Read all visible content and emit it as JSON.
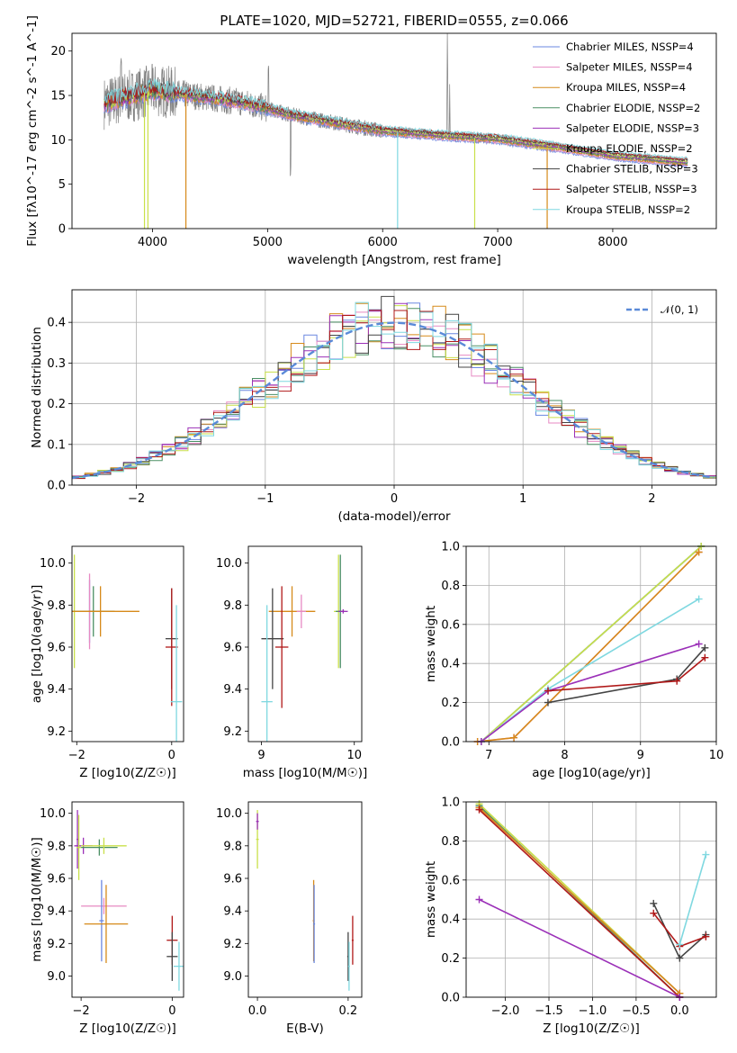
{
  "chart_data": [
    {
      "type": "line",
      "title": "PLATE=1020, MJD=52721, FIBERID=0555, z=0.066",
      "xlabel": "wavelength [Angstrom, rest frame]",
      "ylabel": "Flux [fλ10^-17 erg cm^-2 s^-1 A^-1]",
      "xlim": [
        3300,
        8900
      ],
      "ylim": [
        0,
        22
      ],
      "xticks": [
        "4000",
        "5000",
        "6000",
        "7000",
        "8000"
      ],
      "yticks": [
        "0",
        "5",
        "10",
        "15",
        "20"
      ],
      "legend_position": "top-right",
      "series": [
        {
          "name": "Chabrier MILES, NSSP=4",
          "color": "#6a87e0"
        },
        {
          "name": "Salpeter MILES, NSSP=4",
          "color": "#e78ac3"
        },
        {
          "name": "Kroupa MILES, NSSP=4",
          "color": "#d68a1a"
        },
        {
          "name": "Chabrier ELODIE, NSSP=2",
          "color": "#4a8f64"
        },
        {
          "name": "Salpeter ELODIE, NSSP=3",
          "color": "#9b30b8"
        },
        {
          "name": "Kroupa ELODIE, NSSP=2",
          "color": "#c9e04a"
        },
        {
          "name": "Chabrier STELIB, NSSP=3",
          "color": "#444444"
        },
        {
          "name": "Salpeter STELIB, NSSP=3",
          "color": "#b01818"
        },
        {
          "name": "Kroupa STELIB, NSSP=2",
          "color": "#7fd8e0"
        }
      ],
      "continuum": {
        "x": [
          3600,
          4000,
          4800,
          5200,
          6000,
          6500,
          7000,
          7500,
          8000,
          8600
        ],
        "y": [
          14.2,
          15.6,
          14.2,
          12.8,
          11.0,
          10.5,
          10.1,
          9.2,
          8.2,
          7.5
        ]
      }
    },
    {
      "type": "line",
      "xlabel": "(data-model)/error",
      "ylabel": "Normed distribution",
      "xlim": [
        -2.5,
        2.5
      ],
      "ylim": [
        0,
        0.48
      ],
      "xticks": [
        "−2",
        "−1",
        "0",
        "1",
        "2"
      ],
      "yticks": [
        "0.0",
        "0.1",
        "0.2",
        "0.3",
        "0.4"
      ],
      "legend_position": "top-right",
      "series": [
        {
          "name": "𝒩(0, 1)",
          "color": "#5a8ad8",
          "style": "dashed",
          "function": "normal_pdf"
        }
      ]
    },
    {
      "type": "scatter",
      "xlabel": "Z [log10(Z/Z☉)]",
      "ylabel": "age  [log10(age/yr)]",
      "xlim": [
        -2.1,
        0.25
      ],
      "ylim": [
        9.15,
        10.08
      ],
      "xticks": [
        "−2",
        "0"
      ],
      "yticks": [
        "9.2",
        "9.4",
        "9.6",
        "9.8",
        "10.0"
      ],
      "points": [
        {
          "x": -2.05,
          "y": 9.77,
          "xerr": 0.05,
          "yerr": 0.27,
          "color": "#c9e04a"
        },
        {
          "x": -1.73,
          "y": 9.77,
          "xerr": [
            0.02,
            0.28
          ],
          "yerr": 0.15,
          "color": "#6a87e0"
        },
        {
          "x": -1.73,
          "y": 9.77,
          "xerr": 0.15,
          "yerr": 0.18,
          "color": "#e78ac3"
        },
        {
          "x": -1.65,
          "y": 9.77,
          "xerr": 0.45,
          "yerr": 0.12,
          "color": "#4a8f64"
        },
        {
          "x": -1.5,
          "y": 9.77,
          "xerr": 0.82,
          "yerr": 0.12,
          "color": "#d68a1a"
        },
        {
          "x": 0.0,
          "y": 9.64,
          "xerr": 0.13,
          "yerr": 0.24,
          "color": "#444444"
        },
        {
          "x": 0.0,
          "y": 9.6,
          "xerr": 0.13,
          "yerr": 0.28,
          "color": "#b01818"
        },
        {
          "x": 0.1,
          "y": 9.34,
          "xerr": 0.12,
          "yerr": 0.46,
          "color": "#7fd8e0"
        }
      ]
    },
    {
      "type": "scatter",
      "xlabel": "mass [log10(M/M☉)]",
      "ylabel": "",
      "xlim": [
        8.86,
        10.08
      ],
      "ylim": [
        9.15,
        10.08
      ],
      "xticks": [
        "9",
        "10"
      ],
      "yticks": [
        "9.2",
        "9.4",
        "9.6",
        "9.8",
        "10.0"
      ],
      "points": [
        {
          "x": 9.83,
          "y": 9.77,
          "xerr": 0.05,
          "yerr": 0.27,
          "color": "#c9e04a"
        },
        {
          "x": 9.85,
          "y": 9.77,
          "xerr": 0.05,
          "yerr": 0.27,
          "color": "#4a8f64"
        },
        {
          "x": 9.88,
          "y": 9.77,
          "xerr": 0.05,
          "yerr": 0.01,
          "color": "#9b30b8"
        },
        {
          "x": 9.33,
          "y": 9.77,
          "xerr": 0.25,
          "yerr": 0.12,
          "color": "#d68a1a"
        },
        {
          "x": 9.43,
          "y": 9.77,
          "xerr": 0.05,
          "yerr": 0.08,
          "color": "#e78ac3"
        },
        {
          "x": 9.12,
          "y": 9.64,
          "xerr": 0.12,
          "yerr": 0.24,
          "color": "#444444"
        },
        {
          "x": 9.22,
          "y": 9.6,
          "xerr": 0.07,
          "yerr": 0.29,
          "color": "#b01818"
        },
        {
          "x": 9.06,
          "y": 9.34,
          "xerr": 0.06,
          "yerr": 0.46,
          "color": "#7fd8e0"
        }
      ]
    },
    {
      "type": "line",
      "xlabel": "age  [log10(age/yr)]",
      "ylabel": "mass weight",
      "xlim": [
        6.7,
        10
      ],
      "ylim": [
        0,
        1
      ],
      "xticks": [
        "7",
        "8",
        "9",
        "10"
      ],
      "yticks": [
        "0.0",
        "0.2",
        "0.4",
        "0.6",
        "0.8",
        "1.0"
      ],
      "series": [
        {
          "color": "#6a87e0",
          "x": [
            6.9,
            9.8
          ],
          "y": [
            0,
            1.0
          ]
        },
        {
          "color": "#4a8f64",
          "x": [
            6.9,
            9.8
          ],
          "y": [
            0,
            1.0
          ]
        },
        {
          "color": "#c9e04a",
          "x": [
            6.9,
            9.8
          ],
          "y": [
            0,
            1.0
          ]
        },
        {
          "color": "#e78ac3",
          "x": [
            6.85,
            7.33,
            9.77
          ],
          "y": [
            0,
            0.02,
            0.97
          ]
        },
        {
          "color": "#d68a1a",
          "x": [
            6.85,
            7.33,
            9.77
          ],
          "y": [
            0,
            0.02,
            0.97
          ]
        },
        {
          "color": "#7fd8e0",
          "x": [
            6.9,
            7.78,
            9.77
          ],
          "y": [
            0,
            0.27,
            0.73
          ]
        },
        {
          "color": "#9b30b8",
          "x": [
            6.9,
            7.78,
            9.77
          ],
          "y": [
            0,
            0.26,
            0.5
          ]
        },
        {
          "color": "#444444",
          "x": [
            7.78,
            9.48,
            9.85
          ],
          "y": [
            0.2,
            0.32,
            0.48
          ]
        },
        {
          "color": "#b01818",
          "x": [
            7.78,
            9.48,
            9.85
          ],
          "y": [
            0.26,
            0.31,
            0.43
          ]
        }
      ]
    },
    {
      "type": "scatter",
      "xlabel": "Z [log10(Z/Z☉)]",
      "ylabel": "mass [log10(M/M☉)]",
      "xlim": [
        -2.2,
        0.25
      ],
      "ylim": [
        8.87,
        10.07
      ],
      "xticks": [
        "−2",
        "0"
      ],
      "yticks": [
        "9.0",
        "9.2",
        "9.4",
        "9.6",
        "9.8",
        "10.0"
      ],
      "points": [
        {
          "x": -2.08,
          "y": 9.84,
          "xerr": 0.02,
          "yerr": 0.18,
          "color": "#9b30b8"
        },
        {
          "x": -1.95,
          "y": 9.8,
          "xerr": 0.2,
          "yerr": 0.05,
          "color": "#9b30b8"
        },
        {
          "x": -2.05,
          "y": 9.79,
          "xerr": 0.05,
          "yerr": 0.2,
          "color": "#c9e04a"
        },
        {
          "x": -1.6,
          "y": 9.79,
          "xerr": 0.4,
          "yerr": 0.05,
          "color": "#4a8f64"
        },
        {
          "x": -1.5,
          "y": 9.8,
          "xerr": 0.5,
          "yerr": 0.05,
          "color": "#c9e04a"
        },
        {
          "x": -1.5,
          "y": 9.43,
          "xerr": 0.5,
          "yerr": 0.05,
          "color": "#e78ac3"
        },
        {
          "x": -1.55,
          "y": 9.34,
          "xerr": 0.05,
          "yerr": 0.25,
          "color": "#6a87e0"
        },
        {
          "x": -1.45,
          "y": 9.32,
          "xerr": 0.48,
          "yerr": 0.24,
          "color": "#d68a1a"
        },
        {
          "x": 0.0,
          "y": 9.22,
          "xerr": 0.12,
          "yerr": 0.15,
          "color": "#b01818"
        },
        {
          "x": 0.0,
          "y": 9.12,
          "xerr": 0.12,
          "yerr": 0.15,
          "color": "#444444"
        },
        {
          "x": 0.15,
          "y": 9.06,
          "xerr": 0.12,
          "yerr": 0.15,
          "color": "#7fd8e0"
        }
      ]
    },
    {
      "type": "scatter",
      "xlabel": "E(B-V)",
      "ylabel": "",
      "xlim": [
        -0.02,
        0.23
      ],
      "ylim": [
        8.87,
        10.07
      ],
      "xticks": [
        "0.0",
        "0.2"
      ],
      "yticks": [
        "9.0",
        "9.2",
        "9.4",
        "9.6",
        "9.8",
        "10.0"
      ],
      "points": [
        {
          "x": 0.0,
          "y": 9.84,
          "xerr": 0.003,
          "yerr": 0.18,
          "color": "#c9e04a"
        },
        {
          "x": 0.0,
          "y": 9.95,
          "xerr": 0.003,
          "yerr": 0.05,
          "color": "#9b30b8"
        },
        {
          "x": 0.124,
          "y": 9.34,
          "xerr": 0.002,
          "yerr": 0.25,
          "color": "#d68a1a"
        },
        {
          "x": 0.125,
          "y": 9.32,
          "xerr": 0.002,
          "yerr": 0.24,
          "color": "#6a87e0"
        },
        {
          "x": 0.2,
          "y": 9.12,
          "xerr": 0.002,
          "yerr": 0.15,
          "color": "#444444"
        },
        {
          "x": 0.202,
          "y": 9.06,
          "xerr": 0.002,
          "yerr": 0.15,
          "color": "#7fd8e0"
        },
        {
          "x": 0.21,
          "y": 9.22,
          "xerr": 0.002,
          "yerr": 0.15,
          "color": "#b01818"
        }
      ]
    },
    {
      "type": "line",
      "xlabel": "Z [log10(Z/Z☉)]",
      "ylabel": "mass weight",
      "xlim": [
        -2.45,
        0.42
      ],
      "ylim": [
        0,
        1
      ],
      "xticks": [
        "−2.0",
        "−1.5",
        "−1.0",
        "−0.5",
        "0.0"
      ],
      "yticks": [
        "0.0",
        "0.2",
        "0.4",
        "0.6",
        "0.8",
        "1.0"
      ],
      "series": [
        {
          "color": "#4a8f64",
          "x": [
            -2.3,
            0
          ],
          "y": [
            0.98,
            0
          ]
        },
        {
          "color": "#c9e04a",
          "x": [
            -2.3,
            0
          ],
          "y": [
            0.99,
            0.02
          ]
        },
        {
          "color": "#e78ac3",
          "x": [
            -2.3,
            0
          ],
          "y": [
            0.97,
            0.02
          ]
        },
        {
          "color": "#d68a1a",
          "x": [
            -2.3,
            0
          ],
          "y": [
            0.97,
            0.02
          ]
        },
        {
          "color": "#b01818",
          "x": [
            -2.3,
            0
          ],
          "y": [
            0.96,
            0.0
          ]
        },
        {
          "color": "#9b30b8",
          "x": [
            -2.3,
            0
          ],
          "y": [
            0.5,
            0.0
          ]
        },
        {
          "color": "#444444",
          "x": [
            -0.3,
            0,
            0.3
          ],
          "y": [
            0.48,
            0.2,
            0.32
          ]
        },
        {
          "color": "#b01818",
          "x": [
            -0.3,
            0,
            0.3
          ],
          "y": [
            0.43,
            0.26,
            0.31
          ]
        },
        {
          "color": "#7fd8e0",
          "x": [
            0,
            0.3
          ],
          "y": [
            0.27,
            0.73
          ]
        }
      ]
    }
  ]
}
